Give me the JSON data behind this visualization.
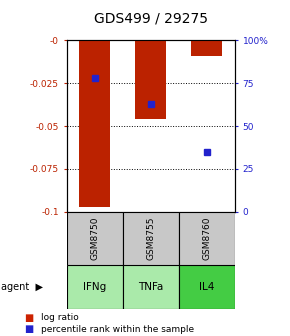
{
  "title": "GDS499 / 29275",
  "samples": [
    "GSM8750",
    "GSM8755",
    "GSM8760"
  ],
  "agents": [
    "IFNg",
    "TNFa",
    "IL4"
  ],
  "log_ratios": [
    -0.097,
    -0.046,
    -0.009
  ],
  "percentile_ranks": [
    78,
    63,
    35
  ],
  "ylim_left": [
    -0.1,
    0.0
  ],
  "yticks_left": [
    0.0,
    -0.025,
    -0.05,
    -0.075,
    -0.1
  ],
  "ytick_labels_left": [
    "-0",
    "-0.025",
    "-0.05",
    "-0.075",
    "-0.1"
  ],
  "yticks_right": [
    100,
    75,
    50,
    25,
    0
  ],
  "ytick_labels_right": [
    "100%",
    "75",
    "50",
    "25",
    "0"
  ],
  "bar_color": "#bb2200",
  "dot_color": "#2222cc",
  "sample_bg": "#c8c8c8",
  "agent_colors": [
    "#aaeaaa",
    "#aaeaaa",
    "#44cc44"
  ],
  "title_fontsize": 10,
  "bar_width": 0.55,
  "legend_bar_color": "#cc2200",
  "legend_dot_color": "#2222cc"
}
